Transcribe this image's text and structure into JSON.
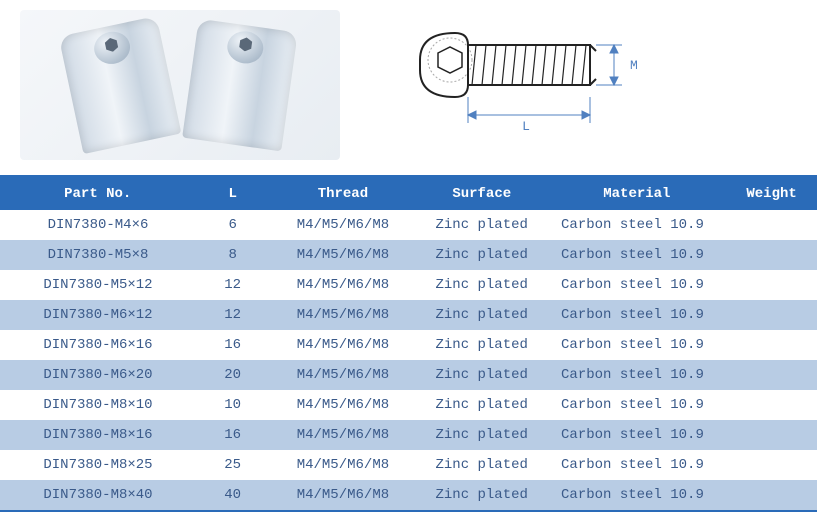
{
  "diagram": {
    "label_L": "L",
    "label_M": "M"
  },
  "colors": {
    "header_bg": "#2a6bb8",
    "header_fg": "#ffffff",
    "row_even_bg": "#ffffff",
    "row_odd_bg": "#b8cce4",
    "cell_fg": "#3a5a8a",
    "border": "#2a6bb8",
    "dim_line": "#5080c0"
  },
  "table": {
    "columns": [
      {
        "key": "part",
        "label": "Part No."
      },
      {
        "key": "L",
        "label": "L"
      },
      {
        "key": "thread",
        "label": "Thread"
      },
      {
        "key": "surface",
        "label": "Surface"
      },
      {
        "key": "material",
        "label": "Material"
      },
      {
        "key": "weight",
        "label": "Weight"
      }
    ],
    "rows": [
      {
        "part": "DIN7380-M4×6",
        "L": "6",
        "thread": "M4/M5/M6/M8",
        "surface": "Zinc plated",
        "material": "Carbon steel 10.9",
        "weight": ""
      },
      {
        "part": "DIN7380-M5×8",
        "L": "8",
        "thread": "M4/M5/M6/M8",
        "surface": "Zinc plated",
        "material": "Carbon steel 10.9",
        "weight": ""
      },
      {
        "part": "DIN7380-M5×12",
        "L": "12",
        "thread": "M4/M5/M6/M8",
        "surface": "Zinc plated",
        "material": "Carbon steel 10.9",
        "weight": ""
      },
      {
        "part": "DIN7380-M6×12",
        "L": "12",
        "thread": "M4/M5/M6/M8",
        "surface": "Zinc plated",
        "material": "Carbon steel 10.9",
        "weight": ""
      },
      {
        "part": "DIN7380-M6×16",
        "L": "16",
        "thread": "M4/M5/M6/M8",
        "surface": "Zinc plated",
        "material": "Carbon steel 10.9",
        "weight": ""
      },
      {
        "part": "DIN7380-M6×20",
        "L": "20",
        "thread": "M4/M5/M6/M8",
        "surface": "Zinc plated",
        "material": "Carbon steel 10.9",
        "weight": ""
      },
      {
        "part": "DIN7380-M8×10",
        "L": "10",
        "thread": "M4/M5/M6/M8",
        "surface": "Zinc plated",
        "material": "Carbon steel 10.9",
        "weight": ""
      },
      {
        "part": "DIN7380-M8×16",
        "L": "16",
        "thread": "M4/M5/M6/M8",
        "surface": "Zinc plated",
        "material": "Carbon steel 10.9",
        "weight": ""
      },
      {
        "part": "DIN7380-M8×25",
        "L": "25",
        "thread": "M4/M5/M6/M8",
        "surface": "Zinc plated",
        "material": "Carbon steel 10.9",
        "weight": ""
      },
      {
        "part": "DIN7380-M8×40",
        "L": "40",
        "thread": "M4/M5/M6/M8",
        "surface": "Zinc plated",
        "material": "Carbon steel 10.9",
        "weight": ""
      }
    ]
  }
}
